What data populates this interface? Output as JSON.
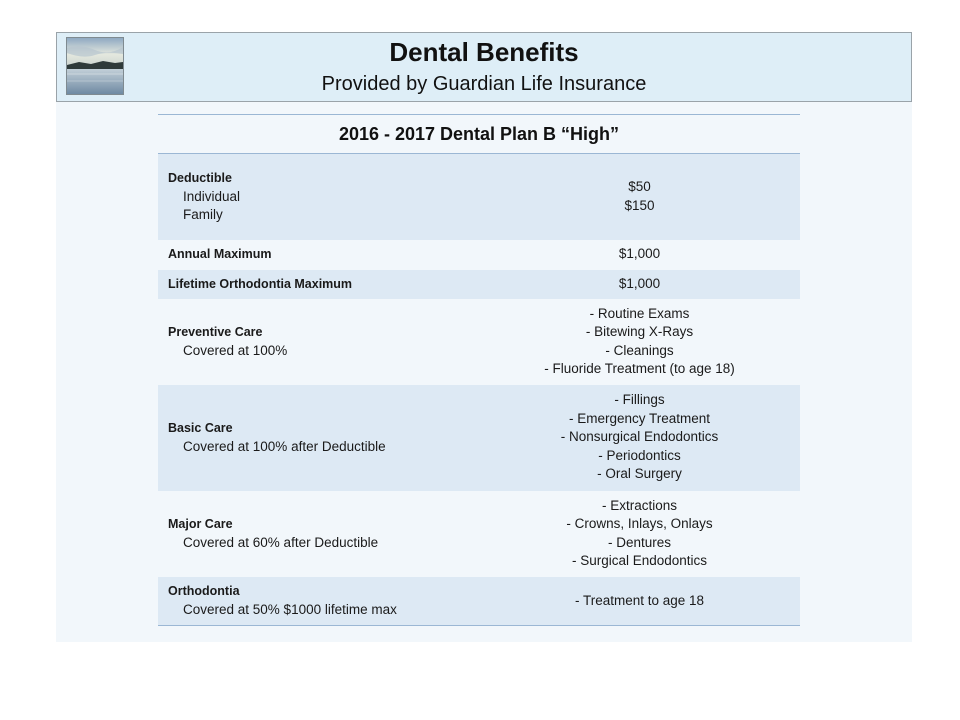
{
  "header": {
    "title": "Dental Benefits",
    "subtitle": "Provided by Guardian Life Insurance",
    "image_icon": "landscape-lake-photo"
  },
  "table": {
    "heading": "2016 - 2017 Dental Plan B “High”",
    "rows": [
      {
        "label": "Deductible",
        "sub": [
          "Individual",
          "Family"
        ],
        "values": [
          "$50",
          "$150"
        ]
      },
      {
        "label": "Annual Maximum",
        "sub": [],
        "values": [
          "$1,000"
        ]
      },
      {
        "label": "Lifetime Orthodontia Maximum",
        "sub": [],
        "values": [
          "$1,000"
        ]
      },
      {
        "label": "Preventive Care",
        "sub": [
          "Covered at 100%"
        ],
        "values": [
          "- Routine Exams",
          "- Bitewing X-Rays",
          "- Cleanings",
          "- Fluoride Treatment (to age 18)"
        ]
      },
      {
        "label": "Basic Care",
        "sub": [
          "Covered at 100% after Deductible"
        ],
        "values": [
          "- Fillings",
          "- Emergency Treatment",
          "- Nonsurgical Endodontics",
          "- Periodontics",
          "- Oral Surgery"
        ]
      },
      {
        "label": "Major Care",
        "sub": [
          "Covered at 60% after Deductible"
        ],
        "values": [
          "- Extractions",
          "- Crowns, Inlays, Onlays",
          "- Dentures",
          "- Surgical Endodontics"
        ]
      },
      {
        "label": "Orthodontia",
        "sub": [
          "Covered at 50% $1000 lifetime max"
        ],
        "values": [
          "- Treatment to age 18"
        ]
      }
    ]
  },
  "colors": {
    "header_bg": "#deeef7",
    "panel_bg": "#f2f7fb",
    "row_shade": "#dde9f4",
    "rule": "#9bb7d4"
  }
}
